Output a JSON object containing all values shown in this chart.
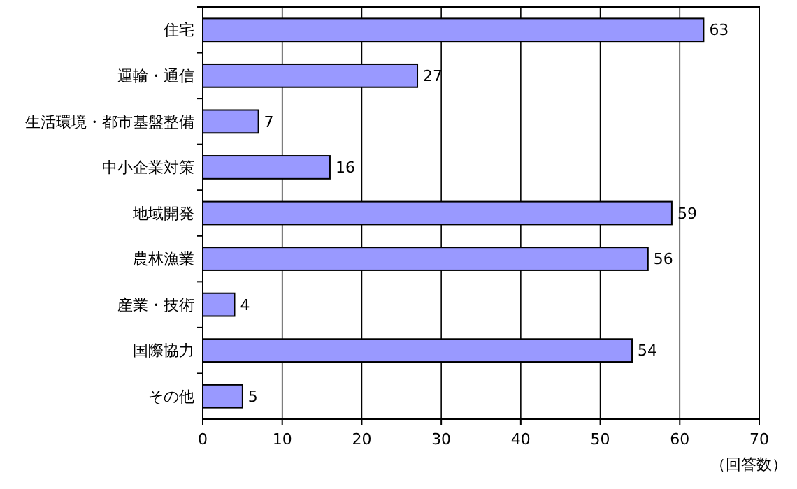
{
  "chart_data": {
    "type": "bar",
    "orientation": "horizontal",
    "categories": [
      "住宅",
      "運輸・通信",
      "生活環境・都市基盤整備",
      "中小企業対策",
      "地域開発",
      "農林漁業",
      "産業・技術",
      "国際協力",
      "その他"
    ],
    "values": [
      63,
      27,
      7,
      16,
      59,
      56,
      4,
      54,
      5
    ],
    "color": "#9999ff",
    "data_labels": true,
    "xlim": [
      0,
      70
    ],
    "xticks": [
      0,
      10,
      20,
      30,
      40,
      50,
      60,
      70
    ],
    "grid": "x",
    "xlabel": "（回答数）"
  }
}
